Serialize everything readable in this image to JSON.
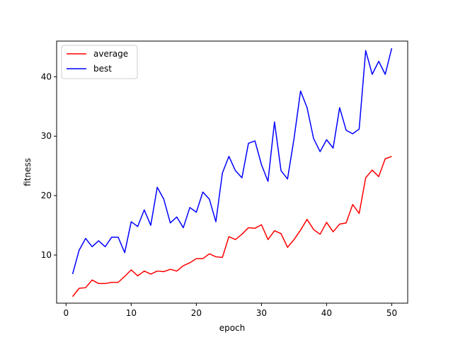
{
  "chart_data": {
    "type": "line",
    "title": "",
    "xlabel": "epoch",
    "ylabel": "fitness",
    "xlim": [
      -1.45,
      52.45
    ],
    "ylim": [
      1.9,
      46.0
    ],
    "xticks": [
      0,
      10,
      20,
      30,
      40,
      50
    ],
    "yticks": [
      10,
      20,
      30,
      40
    ],
    "grid": false,
    "legend_position": "top-left",
    "x": [
      1,
      2,
      3,
      4,
      5,
      6,
      7,
      8,
      9,
      10,
      11,
      12,
      13,
      14,
      15,
      16,
      17,
      18,
      19,
      20,
      21,
      22,
      23,
      24,
      25,
      26,
      27,
      28,
      29,
      30,
      31,
      32,
      33,
      34,
      35,
      36,
      37,
      38,
      39,
      40,
      41,
      42,
      43,
      44,
      45,
      46,
      47,
      48,
      49,
      50
    ],
    "series": [
      {
        "name": "average",
        "color": "#ff0000",
        "values": [
          3.0,
          4.4,
          4.5,
          5.8,
          5.2,
          5.2,
          5.4,
          5.4,
          6.4,
          7.5,
          6.5,
          7.3,
          6.8,
          7.3,
          7.2,
          7.6,
          7.3,
          8.2,
          8.7,
          9.4,
          9.4,
          10.2,
          9.7,
          9.6,
          13.1,
          12.6,
          13.5,
          14.6,
          14.5,
          15.1,
          12.6,
          14.1,
          13.6,
          11.3,
          12.6,
          14.2,
          16.0,
          14.3,
          13.5,
          15.5,
          13.9,
          15.2,
          15.4,
          18.5,
          17.0,
          23.0,
          24.3,
          23.2,
          26.2,
          26.6
        ]
      },
      {
        "name": "best",
        "color": "#0000ff",
        "values": [
          6.8,
          10.8,
          12.8,
          11.4,
          12.4,
          11.4,
          13.0,
          13.0,
          10.4,
          15.6,
          14.8,
          17.6,
          15.0,
          21.4,
          19.4,
          15.4,
          16.4,
          14.6,
          18.0,
          17.2,
          20.6,
          19.4,
          15.6,
          23.8,
          26.6,
          24.2,
          23.0,
          28.8,
          29.2,
          25.2,
          22.4,
          32.4,
          24.2,
          22.8,
          29.6,
          37.6,
          34.8,
          29.6,
          27.4,
          29.4,
          28.0,
          34.8,
          31.0,
          30.4,
          31.2,
          44.4,
          40.4,
          42.6,
          40.4,
          44.8
        ]
      }
    ]
  }
}
